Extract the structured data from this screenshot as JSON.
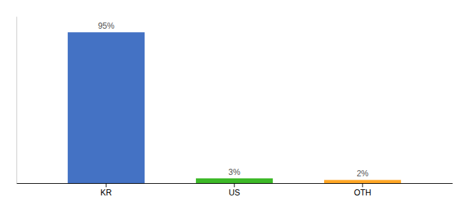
{
  "chart_data": {
    "type": "bar",
    "categories": [
      "KR",
      "US",
      "OTH"
    ],
    "values": [
      95,
      3,
      2
    ],
    "value_labels": [
      "95%",
      "3%",
      "2%"
    ],
    "colors": [
      "#4472C4",
      "#3DB928",
      "#FFA726"
    ],
    "ylim": [
      0,
      105
    ],
    "data_labels": true,
    "tick_labels": "x"
  }
}
